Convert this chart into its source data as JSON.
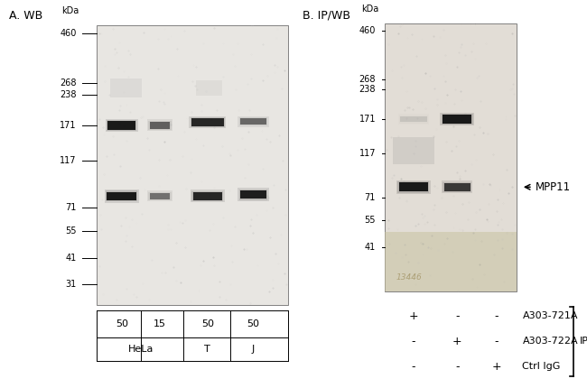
{
  "panel_A_title": "A. WB",
  "panel_B_title": "B. IP/WB",
  "kda_labels_A": [
    "460",
    "268",
    "238",
    "171",
    "117",
    "71",
    "55",
    "41",
    "31"
  ],
  "kda_values_A": [
    460,
    268,
    238,
    171,
    117,
    71,
    55,
    41,
    31
  ],
  "kda_labels_B": [
    "460",
    "268",
    "238",
    "171",
    "117",
    "71",
    "55",
    "41"
  ],
  "kda_values_B": [
    460,
    268,
    238,
    171,
    117,
    71,
    55,
    41
  ],
  "sample_amounts_A": [
    "50",
    "15",
    "50",
    "50"
  ],
  "cell_lines_A_row1": [
    "HeLa",
    "T",
    "J"
  ],
  "mpp11_label": "MPP11",
  "ip_rows": [
    [
      "+",
      "-",
      "-",
      "A303-721A"
    ],
    [
      "-",
      "+",
      "-",
      "A303-722A"
    ],
    [
      "-",
      "-",
      "+",
      "Ctrl IgG"
    ]
  ],
  "ip_bracket_label": "IP"
}
